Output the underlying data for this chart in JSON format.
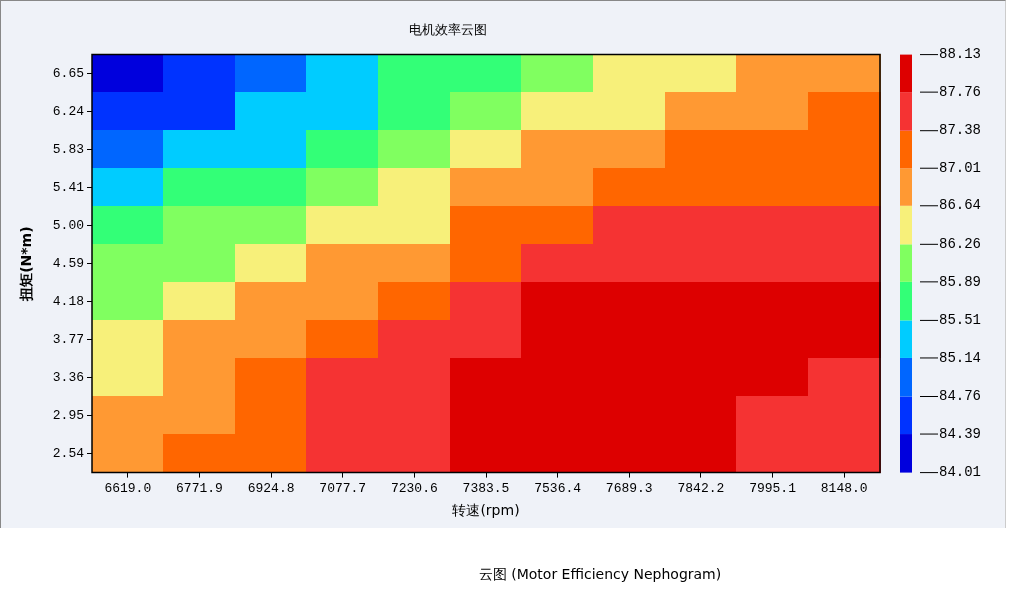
{
  "chart_data": {
    "type": "heatmap",
    "title": "电机效率云图",
    "xlabel": "转速(rpm)",
    "ylabel": "扭矩(N*m)",
    "annotations": [
      "云图 (Motor Efficiency Nephogram)"
    ],
    "categories": [
      "6619.0",
      "6771.9",
      "6924.8",
      "7077.7",
      "7230.6",
      "7383.5",
      "7536.4",
      "7689.3",
      "7842.2",
      "7995.1",
      "8148.0"
    ],
    "y_categories": [
      "6.65",
      "6.24",
      "5.83",
      "5.41",
      "5.00",
      "4.59",
      "4.18",
      "3.77",
      "3.36",
      "2.95",
      "2.54"
    ],
    "clim": [
      84.01,
      88.13
    ],
    "cticks": [
      84.01,
      84.39,
      84.76,
      85.14,
      85.51,
      85.89,
      86.26,
      86.64,
      87.01,
      87.38,
      87.76,
      88.13
    ],
    "colors": [
      "#0000dd",
      "#0033ff",
      "#0066ff",
      "#00ccff",
      "#33ff77",
      "#80ff60",
      "#f7f07a",
      "#ff9933",
      "#ff6600",
      "#f53333",
      "#dd0000"
    ],
    "cells": [
      [
        84.2,
        84.58,
        84.95,
        85.33,
        85.7,
        85.7,
        86.08,
        86.45,
        86.45,
        86.83,
        86.83
      ],
      [
        84.58,
        84.58,
        85.33,
        85.33,
        85.7,
        86.08,
        86.45,
        86.45,
        86.83,
        86.83,
        87.2
      ],
      [
        84.95,
        85.33,
        85.33,
        85.7,
        86.08,
        86.45,
        86.83,
        86.83,
        87.2,
        87.2,
        87.2
      ],
      [
        85.33,
        85.7,
        85.7,
        86.08,
        86.45,
        86.83,
        86.83,
        87.2,
        87.2,
        87.2,
        87.2
      ],
      [
        85.7,
        86.08,
        86.08,
        86.45,
        86.45,
        87.2,
        87.2,
        87.57,
        87.57,
        87.57,
        87.57
      ],
      [
        86.08,
        86.08,
        86.45,
        86.83,
        86.83,
        87.2,
        87.57,
        87.57,
        87.57,
        87.57,
        87.57
      ],
      [
        86.08,
        86.45,
        86.83,
        86.83,
        87.2,
        87.57,
        87.95,
        87.95,
        87.95,
        87.95,
        87.95
      ],
      [
        86.45,
        86.83,
        86.83,
        87.2,
        87.57,
        87.57,
        87.95,
        87.95,
        87.95,
        87.95,
        87.95
      ],
      [
        86.45,
        86.83,
        87.2,
        87.57,
        87.57,
        87.95,
        87.95,
        87.95,
        87.95,
        87.95,
        87.57
      ],
      [
        86.83,
        86.83,
        87.2,
        87.57,
        87.57,
        87.95,
        87.95,
        87.95,
        87.95,
        87.57,
        87.57
      ],
      [
        86.83,
        87.2,
        87.2,
        87.57,
        87.57,
        87.95,
        87.95,
        87.95,
        87.95,
        87.57,
        87.57
      ]
    ]
  }
}
